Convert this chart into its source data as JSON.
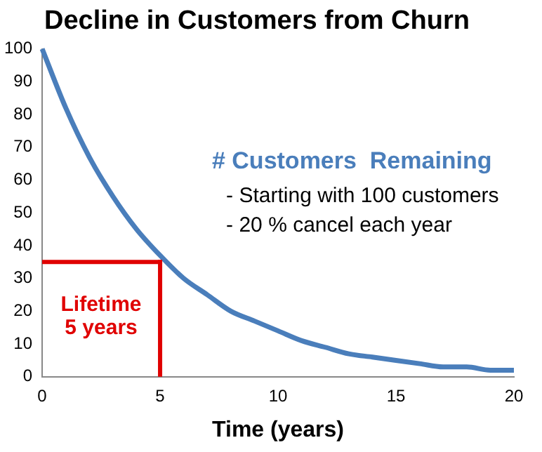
{
  "chart_data": {
    "type": "line",
    "title": "Decline in Customers from Churn",
    "xlabel": "Time (years)",
    "x": [
      0,
      1,
      2,
      3,
      4,
      5,
      6,
      7,
      8,
      9,
      10,
      11,
      12,
      13,
      14,
      15,
      16,
      17,
      18,
      19,
      20
    ],
    "series": [
      {
        "name": "# Customers  Remaining",
        "color": "#4a7ebb",
        "values": [
          100,
          82,
          67,
          55,
          45,
          37,
          30,
          25,
          20,
          17,
          14,
          11,
          9,
          7,
          6,
          5,
          4,
          3,
          3,
          2,
          2
        ]
      }
    ],
    "ref_lines": [
      {
        "axis": "x",
        "value": 5,
        "color": "#e00000"
      },
      {
        "axis": "y",
        "value": 35,
        "color": "#e00000"
      }
    ],
    "annotations": [
      "- Starting with 100 customers",
      "- 20 % cancel each year",
      "Lifetime 5 years"
    ],
    "xlim": [
      0,
      20
    ],
    "xticks": [
      0,
      5,
      10,
      15,
      20
    ],
    "ylim": [
      0,
      100
    ],
    "yticks": [
      0,
      10,
      20,
      30,
      40,
      50,
      60,
      70,
      80,
      90,
      100
    ],
    "grid": false,
    "legend": false,
    "marker": "none",
    "line_style": "solid"
  }
}
